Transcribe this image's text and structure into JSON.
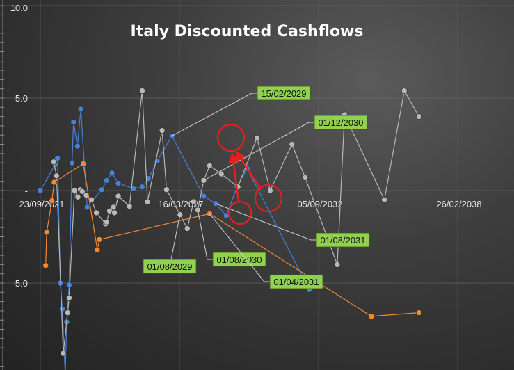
{
  "chart_data": {
    "type": "line",
    "title": "Italy Discounted Cashflows",
    "xlabel": "",
    "ylabel": "",
    "ylim": [
      -9.5,
      10.0
    ],
    "y_ticks": [
      {
        "value": 10.0,
        "label": "10.0"
      },
      {
        "value": 5.0,
        "label": "5.0"
      },
      {
        "value": 0,
        "label": "-"
      },
      {
        "value": -5.0,
        "label": "-5.0"
      }
    ],
    "x_tick_labels": [
      "23/09/2021",
      "16/03/2027",
      "05/09/2032",
      "26/02/2038"
    ],
    "grid": true,
    "legend": "none",
    "colors": {
      "blue": "#4a7fd8",
      "gray": "#b8b8b8",
      "orange": "#ef8a33",
      "callout": "#92d050",
      "highlight": "#e8201c"
    },
    "series": [
      {
        "color": "#4a7fd8",
        "points": [
          {
            "x": "2021-09-23",
            "y": 0.0
          },
          {
            "x": "2022-07-24",
            "y": 1.4
          },
          {
            "x": "2022-09-11",
            "y": 1.75
          },
          {
            "x": "2022-11-09",
            "y": -5.0
          },
          {
            "x": "2022-12-19",
            "y": -6.4
          },
          {
            "x": "2023-02-16",
            "y": -10.0
          },
          {
            "x": "2023-03-18",
            "y": -7.1
          },
          {
            "x": "2023-05-07",
            "y": -5.1
          },
          {
            "x": "2023-07-06",
            "y": 1.5
          },
          {
            "x": "2023-08-05",
            "y": 3.7
          },
          {
            "x": "2023-10-24",
            "y": 2.4
          },
          {
            "x": "2024-01-02",
            "y": 4.4
          },
          {
            "x": "2024-05-11",
            "y": -0.9
          },
          {
            "x": "2025-03-08",
            "y": 0.05
          },
          {
            "x": "2025-06-16",
            "y": 0.55
          },
          {
            "x": "2025-10-04",
            "y": 0.95
          },
          {
            "x": "2026-02-11",
            "y": 0.4
          },
          {
            "x": "2026-12-18",
            "y": 0.1
          },
          {
            "x": "2027-06-16",
            "y": 0.2
          },
          {
            "x": "2027-10-24",
            "y": 0.65
          },
          {
            "x": "2028-04-21",
            "y": 1.6
          },
          {
            "x": "2029-02-15",
            "y": 2.95
          },
          {
            "x": "2030-12-01",
            "y": -0.3
          },
          {
            "x": "2031-08-01",
            "y": -0.7
          },
          {
            "x": "2032-03-08",
            "y": -1.35
          },
          {
            "x": "2032-10-14",
            "y": 0.2
          },
          {
            "x": "2033-05-12",
            "y": 1.2
          },
          {
            "x": "2036-11-04",
            "y": -5.35
          }
        ]
      },
      {
        "color": "#b8b8b8",
        "points": [
          {
            "x": "2022-06-24",
            "y": 1.55
          },
          {
            "x": "2022-08-22",
            "y": 0.8
          },
          {
            "x": "2023-01-07",
            "y": -8.8
          },
          {
            "x": "2023-04-07",
            "y": -6.6
          },
          {
            "x": "2023-05-07",
            "y": -5.8
          },
          {
            "x": "2023-08-25",
            "y": 0.0
          },
          {
            "x": "2023-11-03",
            "y": -0.35
          },
          {
            "x": "2023-12-23",
            "y": 0.05
          },
          {
            "x": "2024-02-01",
            "y": -0.05
          },
          {
            "x": "2024-04-21",
            "y": -0.25
          },
          {
            "x": "2024-08-09",
            "y": -0.5
          },
          {
            "x": "2024-11-17",
            "y": -1.2
          },
          {
            "x": "2025-05-27",
            "y": -1.8
          },
          {
            "x": "2025-06-16",
            "y": -1.7
          },
          {
            "x": "2025-08-15",
            "y": -1.1
          },
          {
            "x": "2025-11-03",
            "y": -0.9
          },
          {
            "x": "2025-11-23",
            "y": -1.2
          },
          {
            "x": "2026-02-11",
            "y": -0.3
          },
          {
            "x": "2026-09-29",
            "y": -0.85
          },
          {
            "x": "2027-06-16",
            "y": 5.4
          },
          {
            "x": "2027-10-04",
            "y": -0.6
          },
          {
            "x": "2028-07-30",
            "y": 3.25
          },
          {
            "x": "2028-10-28",
            "y": 0.05
          },
          {
            "x": "2029-08-01",
            "y": -1.3
          },
          {
            "x": "2029-12-29",
            "y": -2.05
          },
          {
            "x": "2030-05-08",
            "y": -0.6
          },
          {
            "x": "2030-08-01",
            "y": -1.05
          },
          {
            "x": "2030-12-01",
            "y": 0.55
          },
          {
            "x": "2031-04-01",
            "y": 1.35
          },
          {
            "x": "2031-11-27",
            "y": 0.9
          },
          {
            "x": "2032-11-03",
            "y": 0.2
          },
          {
            "x": "2033-11-29",
            "y": 2.85
          },
          {
            "x": "2034-08-26",
            "y": 0.0
          },
          {
            "x": "2035-11-17",
            "y": 2.5
          },
          {
            "x": "2036-08-14",
            "y": 0.7
          },
          {
            "x": "2038-06-05",
            "y": -4.0
          },
          {
            "x": "2038-11-02",
            "y": 4.1
          },
          {
            "x": "2041-01-26",
            "y": -0.5
          },
          {
            "x": "2042-03-13",
            "y": 5.4
          },
          {
            "x": "2043-01-07",
            "y": 4.0
          }
        ]
      },
      {
        "color": "#ef8a33",
        "points": [
          {
            "x": "2022-01-11",
            "y": -4.05
          },
          {
            "x": "2022-01-31",
            "y": -2.25
          },
          {
            "x": "2022-05-20",
            "y": -0.55
          },
          {
            "x": "2022-07-04",
            "y": 0.45
          },
          {
            "x": "2024-02-21",
            "y": 1.45
          },
          {
            "x": "2024-12-07",
            "y": -3.2
          },
          {
            "x": "2025-01-16",
            "y": -2.65
          },
          {
            "x": "2031-04-01",
            "y": -1.25
          },
          {
            "x": "2040-05-05",
            "y": -6.8
          },
          {
            "x": "2043-01-07",
            "y": -6.6
          }
        ]
      }
    ],
    "annotations": [
      {
        "label": "15/02/2029",
        "target": "2029-02-15",
        "series_index": 0,
        "circled": true
      },
      {
        "label": "01/12/2030",
        "target": "2030-12-01",
        "series_index": 1,
        "circled": false
      },
      {
        "label": "01/08/2029",
        "target": "2029-08-01",
        "series_index": 1,
        "circled": false
      },
      {
        "label": "01/08/2030",
        "target": "2030-08-01",
        "series_index": 1,
        "circled": false
      },
      {
        "label": "01/08/2031",
        "target": "2031-08-01",
        "series_index": 0,
        "circled": false
      },
      {
        "label": "01/04/2031",
        "target": "2031-04-01",
        "series_index": 2,
        "circled": false
      }
    ]
  }
}
